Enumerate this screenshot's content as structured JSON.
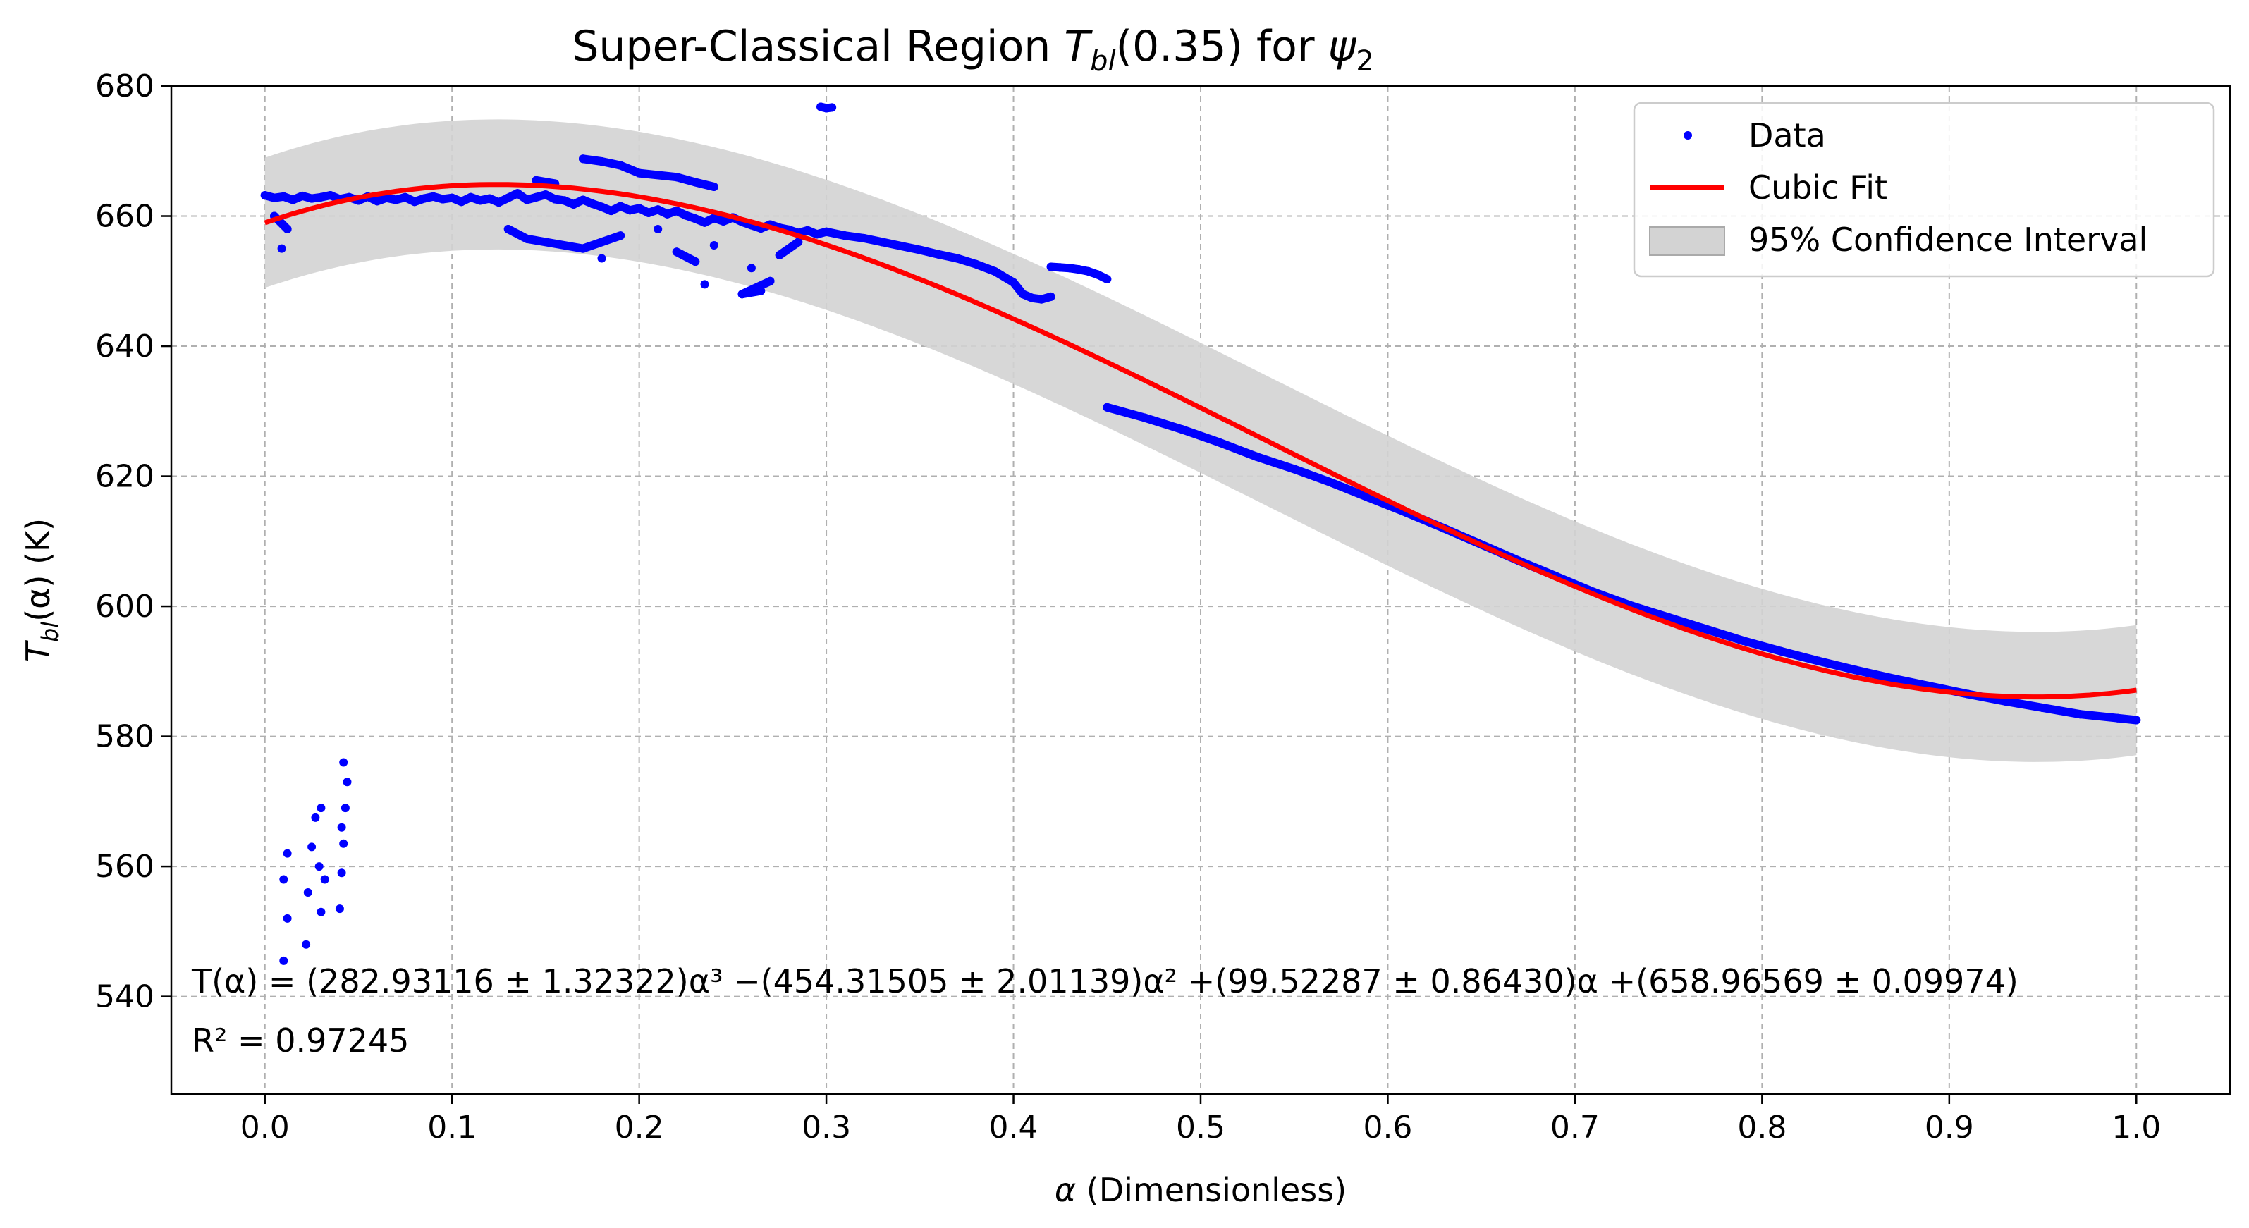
{
  "chart_data": {
    "type": "scatter",
    "title": "Super-Classical Region T_bl(0.35) for ψ2",
    "title_parts": {
      "prefix": "Super-Classical Region ",
      "var": "T",
      "sub": "bl",
      "arg": "(0.35) for ",
      "psi": "ψ",
      "psi_sub": "2"
    },
    "xlabel": "α (Dimensionless)",
    "xlabel_parts": {
      "sym": "α",
      "rest": " (Dimensionless)"
    },
    "ylabel": "T_bl(α) (K)",
    "ylabel_parts": {
      "var": "T",
      "sub": "bl",
      "rest": "(α) (K)"
    },
    "xlim": [
      -0.05,
      1.05
    ],
    "ylim": [
      525,
      680
    ],
    "xticks": [
      0.0,
      0.1,
      0.2,
      0.3,
      0.4,
      0.5,
      0.6,
      0.7,
      0.8,
      0.9,
      1.0
    ],
    "xtick_labels": [
      "0.0",
      "0.1",
      "0.2",
      "0.3",
      "0.4",
      "0.5",
      "0.6",
      "0.7",
      "0.8",
      "0.9",
      "1.0"
    ],
    "yticks": [
      540,
      560,
      580,
      600,
      620,
      640,
      660,
      680
    ],
    "ytick_labels": [
      "540",
      "560",
      "580",
      "600",
      "620",
      "640",
      "660",
      "680"
    ],
    "grid": true,
    "legend_position": "top-right",
    "legend": [
      {
        "label": "Data",
        "kind": "marker",
        "color": "#0000ff"
      },
      {
        "label": "Cubic Fit",
        "kind": "line",
        "color": "#ff0000"
      },
      {
        "label": "95% Confidence Interval",
        "kind": "patch",
        "color": "#d3d3d3"
      }
    ],
    "fit": {
      "name": "Cubic Fit",
      "coefficients": [
        282.93116,
        -454.31505,
        99.52287,
        658.96569
      ],
      "uncertainties": [
        1.32322,
        2.01139,
        0.8643,
        0.09974
      ],
      "r_squared": 0.97245,
      "color": "#ff0000",
      "x_range": [
        0.0,
        1.0
      ]
    },
    "confidence_band": {
      "half_width": 10,
      "color": "#d3d3d3"
    },
    "annotation": {
      "equation": "T(α) = (282.93116 ± 1.32322)α³ −(454.31505 ± 2.01139)α² +(99.52287 ± 0.86430)α +(658.96569 ± 0.09974)",
      "r2": "R² = 0.97245"
    },
    "series": [
      {
        "name": "Data",
        "color": "#0000ff",
        "points": [
          [
            0.0,
            663.2
          ],
          [
            0.005,
            662.8
          ],
          [
            0.01,
            663.0
          ],
          [
            0.015,
            662.5
          ],
          [
            0.02,
            663.1
          ],
          [
            0.025,
            662.7
          ],
          [
            0.03,
            662.9
          ],
          [
            0.035,
            663.2
          ],
          [
            0.04,
            662.6
          ],
          [
            0.045,
            662.9
          ],
          [
            0.05,
            662.4
          ],
          [
            0.055,
            663.0
          ],
          [
            0.06,
            662.3
          ],
          [
            0.065,
            662.8
          ],
          [
            0.07,
            662.5
          ],
          [
            0.075,
            662.9
          ],
          [
            0.08,
            662.2
          ],
          [
            0.085,
            662.7
          ],
          [
            0.09,
            663.0
          ],
          [
            0.095,
            662.6
          ],
          [
            0.1,
            662.8
          ],
          [
            0.105,
            662.2
          ],
          [
            0.11,
            662.9
          ],
          [
            0.115,
            662.4
          ],
          [
            0.12,
            662.7
          ],
          [
            0.125,
            662.1
          ],
          [
            0.13,
            662.8
          ],
          [
            0.135,
            663.5
          ],
          [
            0.14,
            662.5
          ],
          [
            0.145,
            662.9
          ],
          [
            0.15,
            663.3
          ],
          [
            0.155,
            662.6
          ],
          [
            0.16,
            662.4
          ],
          [
            0.165,
            661.8
          ],
          [
            0.17,
            662.5
          ],
          [
            0.175,
            661.9
          ],
          [
            0.18,
            661.4
          ],
          [
            0.185,
            660.8
          ],
          [
            0.19,
            661.5
          ],
          [
            0.195,
            660.9
          ],
          [
            0.2,
            661.2
          ],
          [
            0.205,
            660.5
          ],
          [
            0.21,
            661.0
          ],
          [
            0.215,
            660.3
          ],
          [
            0.22,
            660.8
          ],
          [
            0.225,
            660.1
          ],
          [
            0.23,
            659.6
          ],
          [
            0.235,
            659.0
          ],
          [
            0.24,
            659.7
          ],
          [
            0.245,
            659.2
          ],
          [
            0.25,
            659.8
          ],
          [
            0.255,
            659.1
          ],
          [
            0.26,
            658.6
          ],
          [
            0.265,
            658.1
          ],
          [
            0.27,
            658.7
          ],
          [
            0.275,
            658.2
          ],
          [
            0.28,
            657.9
          ],
          [
            0.285,
            657.4
          ],
          [
            0.29,
            657.8
          ],
          [
            0.295,
            657.2
          ],
          [
            0.3,
            657.6
          ],
          [
            0.31,
            657.0
          ],
          [
            0.32,
            656.6
          ],
          [
            0.33,
            656.0
          ],
          [
            0.34,
            655.4
          ],
          [
            0.35,
            654.8
          ],
          [
            0.36,
            654.1
          ],
          [
            0.37,
            653.5
          ],
          [
            0.38,
            652.6
          ],
          [
            0.39,
            651.5
          ],
          [
            0.4,
            649.8
          ],
          [
            0.405,
            648.0
          ],
          [
            0.41,
            647.4
          ],
          [
            0.415,
            647.2
          ],
          [
            0.42,
            647.6
          ],
          [
            0.42,
            652.2
          ],
          [
            0.425,
            652.1
          ],
          [
            0.43,
            652.0
          ],
          [
            0.435,
            651.8
          ],
          [
            0.44,
            651.5
          ],
          [
            0.445,
            651.0
          ],
          [
            0.45,
            650.3
          ],
          [
            0.005,
            660.0
          ],
          [
            0.012,
            658.0
          ],
          [
            0.009,
            655.0
          ],
          [
            0.012,
            552.0
          ],
          [
            0.01,
            545.5
          ],
          [
            0.012,
            562.0
          ],
          [
            0.01,
            558.0
          ],
          [
            0.022,
            548.0
          ],
          [
            0.023,
            556.0
          ],
          [
            0.025,
            563.0
          ],
          [
            0.027,
            567.5
          ],
          [
            0.029,
            560.0
          ],
          [
            0.03,
            553.0
          ],
          [
            0.03,
            569.0
          ],
          [
            0.032,
            558.0
          ],
          [
            0.04,
            553.5
          ],
          [
            0.041,
            559.0
          ],
          [
            0.042,
            563.5
          ],
          [
            0.043,
            569.0
          ],
          [
            0.042,
            576.0
          ],
          [
            0.044,
            573.0
          ],
          [
            0.041,
            566.0
          ],
          [
            0.13,
            658.0
          ],
          [
            0.14,
            656.5
          ],
          [
            0.17,
            655.0
          ],
          [
            0.19,
            657.0
          ],
          [
            0.18,
            653.5
          ],
          [
            0.21,
            658.0
          ],
          [
            0.22,
            654.5
          ],
          [
            0.23,
            653.0
          ],
          [
            0.235,
            649.5
          ],
          [
            0.24,
            655.5
          ],
          [
            0.26,
            652.0
          ],
          [
            0.265,
            648.5
          ],
          [
            0.255,
            648.0
          ],
          [
            0.27,
            650.0
          ],
          [
            0.275,
            654.0
          ],
          [
            0.285,
            656.0
          ],
          [
            0.17,
            668.8
          ],
          [
            0.18,
            668.4
          ],
          [
            0.19,
            667.8
          ],
          [
            0.2,
            666.6
          ],
          [
            0.22,
            666.0
          ],
          [
            0.23,
            665.2
          ],
          [
            0.24,
            664.5
          ],
          [
            0.145,
            665.5
          ],
          [
            0.155,
            665.0
          ],
          [
            0.297,
            676.8
          ],
          [
            0.3,
            676.6
          ],
          [
            0.303,
            676.7
          ],
          [
            0.45,
            630.6
          ],
          [
            0.47,
            629.0
          ],
          [
            0.49,
            627.2
          ],
          [
            0.51,
            625.2
          ],
          [
            0.53,
            623.0
          ],
          [
            0.55,
            621.1
          ],
          [
            0.57,
            619.0
          ],
          [
            0.59,
            616.7
          ],
          [
            0.61,
            614.4
          ],
          [
            0.63,
            612.0
          ],
          [
            0.65,
            609.5
          ],
          [
            0.67,
            607.0
          ],
          [
            0.69,
            604.6
          ],
          [
            0.71,
            602.2
          ],
          [
            0.73,
            600.1
          ],
          [
            0.75,
            598.3
          ],
          [
            0.77,
            596.5
          ],
          [
            0.79,
            594.7
          ],
          [
            0.81,
            593.1
          ],
          [
            0.83,
            591.6
          ],
          [
            0.85,
            590.2
          ],
          [
            0.87,
            588.9
          ],
          [
            0.89,
            587.7
          ],
          [
            0.91,
            586.5
          ],
          [
            0.93,
            585.4
          ],
          [
            0.95,
            584.4
          ],
          [
            0.97,
            583.4
          ],
          [
            0.99,
            582.8
          ],
          [
            1.0,
            582.5
          ]
        ]
      }
    ]
  }
}
